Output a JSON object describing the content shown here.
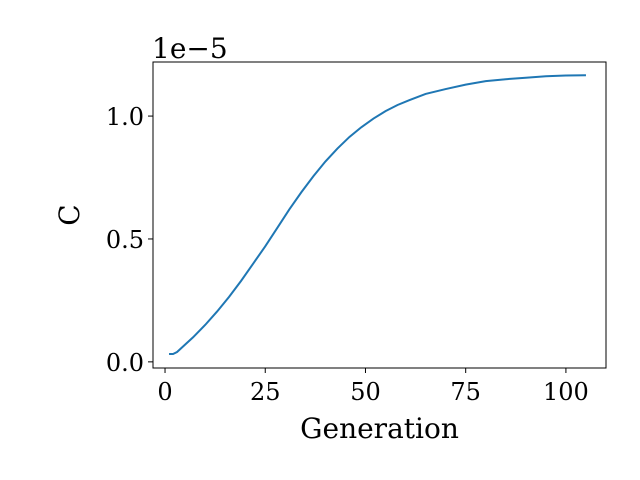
{
  "chart_data": {
    "type": "line",
    "xlabel": "Generation",
    "ylabel": "C",
    "y_offset_label": "1e−5",
    "xlim": [
      -3,
      110
    ],
    "ylim": [
      -2.5e-07,
      1.22e-05
    ],
    "xticks": [
      0,
      25,
      50,
      75,
      100
    ],
    "xtick_labels": [
      "0",
      "25",
      "50",
      "75",
      "100"
    ],
    "yticks": [
      0,
      5e-06,
      1e-05
    ],
    "ytick_labels": [
      "0.0",
      "0.5",
      "1.0"
    ],
    "grid": false,
    "line_color": "#1f77b4",
    "series": [
      {
        "x": [
          1,
          2,
          3,
          5,
          7,
          10,
          13,
          16,
          19,
          22,
          25,
          28,
          31,
          34,
          37,
          40,
          43,
          46,
          49,
          52,
          55,
          58,
          61,
          65,
          70,
          75,
          80,
          85,
          90,
          95,
          100,
          105
        ],
        "y": [
          3.2e-07,
          3.2e-07,
          4e-07,
          7e-07,
          1e-06,
          1.5e-06,
          2.05e-06,
          2.65e-06,
          3.3e-06,
          4e-06,
          4.7e-06,
          5.45e-06,
          6.2e-06,
          6.9e-06,
          7.55e-06,
          8.15e-06,
          8.68e-06,
          9.15e-06,
          9.55e-06,
          9.9e-06,
          1.02e-05,
          1.045e-05,
          1.065e-05,
          1.09e-05,
          1.11e-05,
          1.128e-05,
          1.142e-05,
          1.15e-05,
          1.156e-05,
          1.162e-05,
          1.165e-05,
          1.166e-05
        ]
      }
    ]
  }
}
